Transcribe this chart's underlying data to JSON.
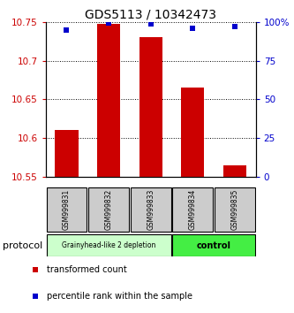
{
  "title": "GDS5113 / 10342473",
  "samples": [
    "GSM999831",
    "GSM999832",
    "GSM999833",
    "GSM999834",
    "GSM999835"
  ],
  "bar_values": [
    10.61,
    10.748,
    10.73,
    10.665,
    10.565
  ],
  "bar_bottom": 10.55,
  "percentile_values": [
    95,
    99.5,
    99,
    96,
    97
  ],
  "ylim_left": [
    10.55,
    10.75
  ],
  "ylim_right": [
    0,
    100
  ],
  "yticks_left": [
    10.55,
    10.6,
    10.65,
    10.7,
    10.75
  ],
  "yticks_right": [
    0,
    25,
    50,
    75,
    100
  ],
  "ytick_labels_left": [
    "10.55",
    "10.6",
    "10.65",
    "10.7",
    "10.75"
  ],
  "ytick_labels_right": [
    "0",
    "25",
    "50",
    "75",
    "100%"
  ],
  "bar_color": "#cc0000",
  "percentile_color": "#0000cc",
  "group1_samples": [
    0,
    1,
    2
  ],
  "group2_samples": [
    3,
    4
  ],
  "group1_label": "Grainyhead-like 2 depletion",
  "group2_label": "control",
  "group1_color": "#ccffcc",
  "group2_color": "#44ee44",
  "protocol_label": "protocol",
  "legend_bar_label": "transformed count",
  "legend_pct_label": "percentile rank within the sample",
  "bg_color": "#ffffff",
  "sample_box_color": "#cccccc",
  "title_fontsize": 10,
  "tick_fontsize": 7.5,
  "bar_width": 0.55
}
